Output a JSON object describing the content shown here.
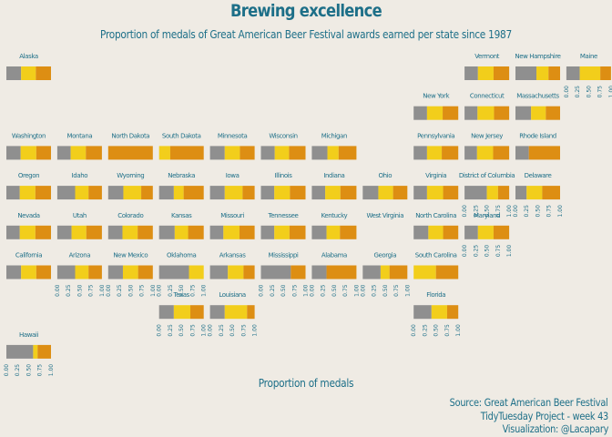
{
  "title": "Brewing excellence",
  "subtitle": "Proportion of medals of Great American Beer Festival awards earned per state since 1987",
  "x_axis_title": "Proportion of medals",
  "caption": {
    "source": "Source:  Great American Beer Festival",
    "project": "TidyTuesday Project - week 43",
    "credit": "Visualization: @Lacapary"
  },
  "colors": {
    "background": "#efebe4",
    "text": "#1d6f88",
    "bronze": "#8f8f8f",
    "silver": "#f2ce1b",
    "gold": "#dd8e13"
  },
  "chart_data": {
    "type": "bar",
    "layout": "geofacet stacked horizontal bars (tile-grid map of US states)",
    "series": [
      {
        "key": "bronze"
      },
      {
        "key": "silver"
      },
      {
        "key": "gold"
      }
    ],
    "xlim": [
      0,
      1
    ],
    "x_ticks": [
      "0.00",
      "0.25",
      "0.50",
      "0.75",
      "1.00"
    ],
    "states": [
      {
        "state": "Alaska",
        "row": 0,
        "col": 0,
        "values": [
          0.33,
          0.33,
          0.34
        ]
      },
      {
        "state": "Vermont",
        "row": 0,
        "col": 9,
        "values": [
          0.3,
          0.35,
          0.35
        ]
      },
      {
        "state": "New Hampshire",
        "row": 0,
        "col": 10,
        "values": [
          0.47,
          0.27,
          0.26
        ]
      },
      {
        "state": "Maine",
        "row": 0,
        "col": 11,
        "values": [
          0.3,
          0.46,
          0.24
        ]
      },
      {
        "state": "New York",
        "row": 1,
        "col": 8,
        "values": [
          0.3,
          0.35,
          0.35
        ]
      },
      {
        "state": "Connecticut",
        "row": 1,
        "col": 9,
        "values": [
          0.29,
          0.37,
          0.34
        ]
      },
      {
        "state": "Massachusetts",
        "row": 1,
        "col": 10,
        "values": [
          0.35,
          0.33,
          0.32
        ]
      },
      {
        "state": "Washington",
        "row": 2,
        "col": 0,
        "values": [
          0.32,
          0.35,
          0.33
        ]
      },
      {
        "state": "Montana",
        "row": 2,
        "col": 1,
        "values": [
          0.3,
          0.34,
          0.36
        ]
      },
      {
        "state": "North Dakota",
        "row": 2,
        "col": 2,
        "values": [
          0.0,
          0.0,
          1.0
        ]
      },
      {
        "state": "South Dakota",
        "row": 2,
        "col": 3,
        "values": [
          0.0,
          0.25,
          0.75
        ]
      },
      {
        "state": "Minnesota",
        "row": 2,
        "col": 4,
        "values": [
          0.33,
          0.34,
          0.33
        ]
      },
      {
        "state": "Wisconsin",
        "row": 2,
        "col": 5,
        "values": [
          0.31,
          0.32,
          0.37
        ]
      },
      {
        "state": "Michigan",
        "row": 2,
        "col": 6,
        "values": [
          0.35,
          0.25,
          0.4
        ]
      },
      {
        "state": "Pennsylvania",
        "row": 2,
        "col": 8,
        "values": [
          0.3,
          0.33,
          0.37
        ]
      },
      {
        "state": "New Jersey",
        "row": 2,
        "col": 9,
        "values": [
          0.28,
          0.36,
          0.36
        ]
      },
      {
        "state": "Rhode Island",
        "row": 2,
        "col": 10,
        "values": [
          0.3,
          0.0,
          0.7
        ]
      },
      {
        "state": "Oregon",
        "row": 3,
        "col": 0,
        "values": [
          0.3,
          0.35,
          0.35
        ]
      },
      {
        "state": "Idaho",
        "row": 3,
        "col": 1,
        "values": [
          0.4,
          0.3,
          0.3
        ]
      },
      {
        "state": "Wyoming",
        "row": 3,
        "col": 2,
        "values": [
          0.34,
          0.4,
          0.26
        ]
      },
      {
        "state": "Nebraska",
        "row": 3,
        "col": 3,
        "values": [
          0.33,
          0.22,
          0.45
        ]
      },
      {
        "state": "Iowa",
        "row": 3,
        "col": 4,
        "values": [
          0.33,
          0.4,
          0.27
        ]
      },
      {
        "state": "Illinois",
        "row": 3,
        "col": 5,
        "values": [
          0.3,
          0.35,
          0.35
        ]
      },
      {
        "state": "Indiana",
        "row": 3,
        "col": 6,
        "values": [
          0.3,
          0.34,
          0.36
        ]
      },
      {
        "state": "Ohio",
        "row": 3,
        "col": 7,
        "values": [
          0.35,
          0.33,
          0.32
        ]
      },
      {
        "state": "Virginia",
        "row": 3,
        "col": 8,
        "values": [
          0.3,
          0.36,
          0.34
        ]
      },
      {
        "state": "District of Columbia",
        "row": 3,
        "col": 9,
        "values": [
          0.5,
          0.25,
          0.25
        ]
      },
      {
        "state": "Delaware",
        "row": 3,
        "col": 10,
        "values": [
          0.25,
          0.35,
          0.4
        ]
      },
      {
        "state": "Nevada",
        "row": 4,
        "col": 0,
        "values": [
          0.3,
          0.35,
          0.35
        ]
      },
      {
        "state": "Utah",
        "row": 4,
        "col": 1,
        "values": [
          0.32,
          0.33,
          0.35
        ]
      },
      {
        "state": "Colorado",
        "row": 4,
        "col": 2,
        "values": [
          0.32,
          0.34,
          0.34
        ]
      },
      {
        "state": "Kansas",
        "row": 4,
        "col": 3,
        "values": [
          0.35,
          0.3,
          0.35
        ]
      },
      {
        "state": "Missouri",
        "row": 4,
        "col": 4,
        "values": [
          0.3,
          0.36,
          0.34
        ]
      },
      {
        "state": "Tennessee",
        "row": 4,
        "col": 5,
        "values": [
          0.3,
          0.34,
          0.36
        ]
      },
      {
        "state": "Kentucky",
        "row": 4,
        "col": 6,
        "values": [
          0.33,
          0.3,
          0.37
        ]
      },
      {
        "state": "West Virginia",
        "row": 4,
        "col": 7,
        "values": [
          0.0,
          0.0,
          0.0
        ]
      },
      {
        "state": "North Carolina",
        "row": 4,
        "col": 8,
        "values": [
          0.33,
          0.33,
          0.34
        ]
      },
      {
        "state": "Maryland",
        "row": 4,
        "col": 9,
        "values": [
          0.3,
          0.35,
          0.35
        ]
      },
      {
        "state": "California",
        "row": 5,
        "col": 0,
        "values": [
          0.33,
          0.34,
          0.33
        ]
      },
      {
        "state": "Arizona",
        "row": 5,
        "col": 1,
        "values": [
          0.4,
          0.3,
          0.3
        ]
      },
      {
        "state": "New Mexico",
        "row": 5,
        "col": 2,
        "values": [
          0.33,
          0.34,
          0.33
        ]
      },
      {
        "state": "Oklahoma",
        "row": 5,
        "col": 3,
        "values": [
          0.67,
          0.33,
          0.0
        ]
      },
      {
        "state": "Arkansas",
        "row": 5,
        "col": 4,
        "values": [
          0.4,
          0.35,
          0.25
        ]
      },
      {
        "state": "Mississippi",
        "row": 5,
        "col": 5,
        "values": [
          0.67,
          0.0,
          0.33
        ]
      },
      {
        "state": "Alabama",
        "row": 5,
        "col": 6,
        "values": [
          0.33,
          0.0,
          0.67
        ]
      },
      {
        "state": "Georgia",
        "row": 5,
        "col": 7,
        "values": [
          0.4,
          0.2,
          0.4
        ]
      },
      {
        "state": "South Carolina",
        "row": 5,
        "col": 8,
        "values": [
          0.0,
          0.5,
          0.5
        ]
      },
      {
        "state": "Texas",
        "row": 6,
        "col": 3,
        "values": [
          0.33,
          0.37,
          0.3
        ]
      },
      {
        "state": "Louisiana",
        "row": 6,
        "col": 4,
        "values": [
          0.33,
          0.5,
          0.17
        ]
      },
      {
        "state": "Florida",
        "row": 6,
        "col": 8,
        "values": [
          0.4,
          0.35,
          0.25
        ]
      },
      {
        "state": "Hawaii",
        "row": 7,
        "col": 0,
        "values": [
          0.6,
          0.1,
          0.3
        ]
      }
    ],
    "x_axis_label_panels": [
      "Hawaii",
      "Arizona",
      "New Mexico",
      "Oklahoma",
      "Mississippi",
      "Alabama",
      "Georgia",
      "Texas",
      "Louisiana",
      "Florida",
      "District of Columbia",
      "Delaware",
      "Maryland",
      "Maine"
    ]
  }
}
